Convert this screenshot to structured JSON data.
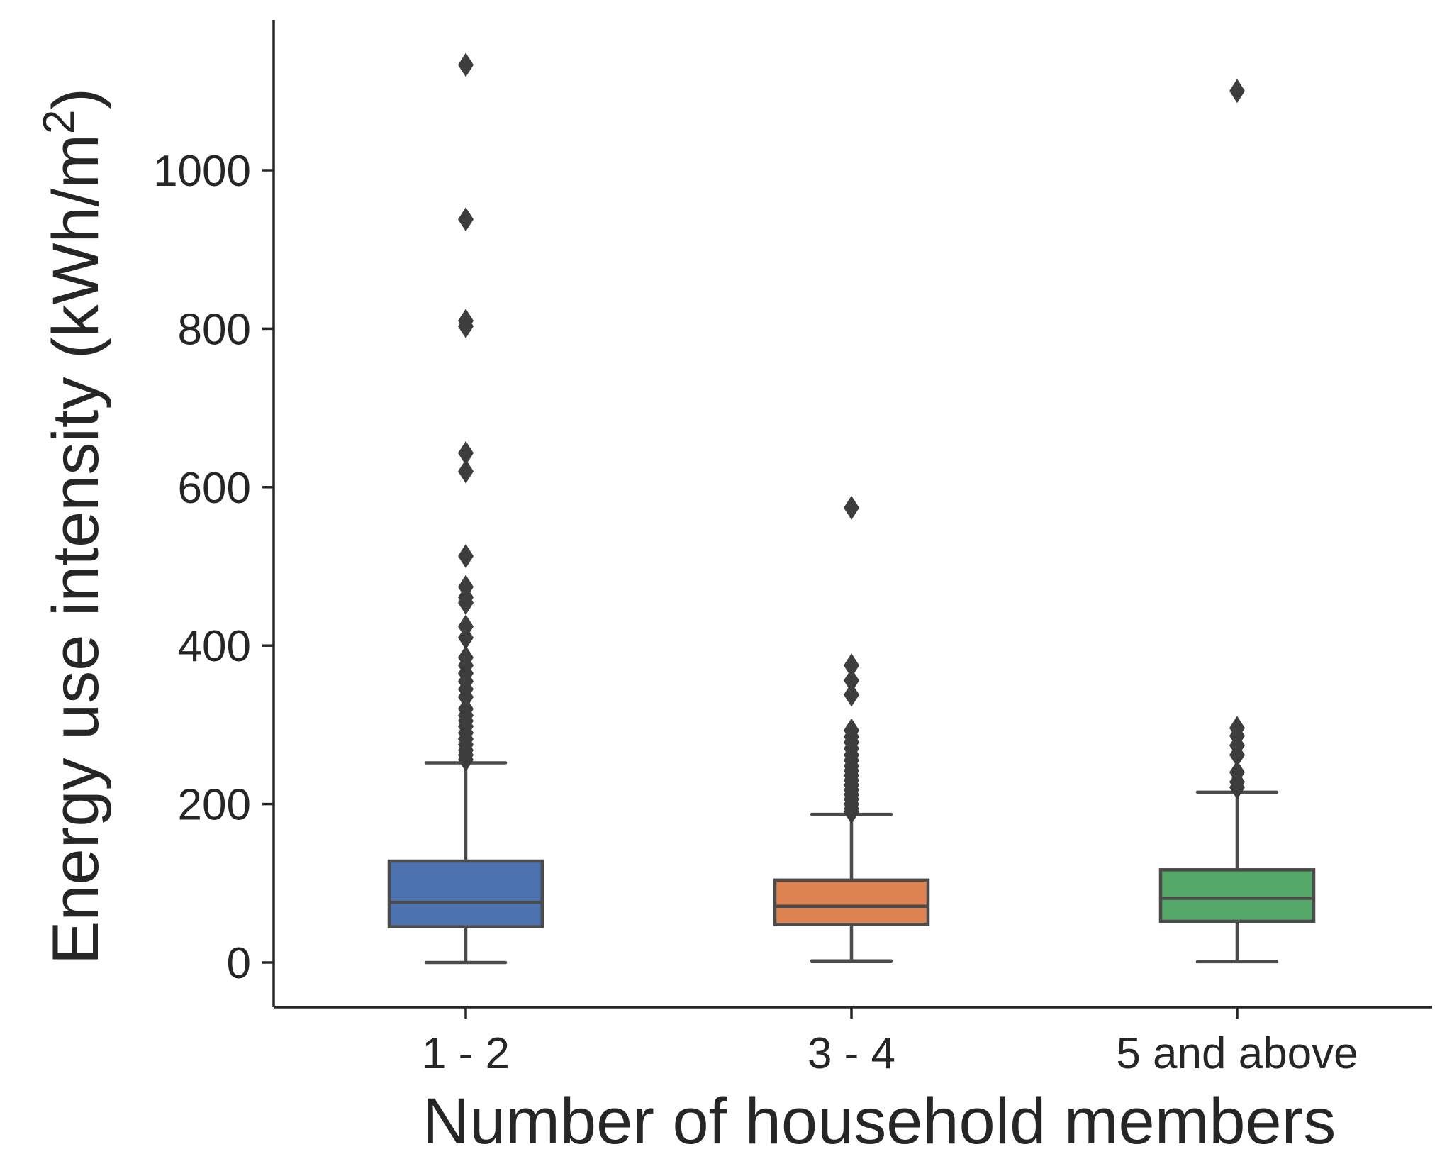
{
  "chart_data": {
    "type": "box",
    "xlabel": "Number of household members",
    "ylabel": "Energy use intensity (kWh/m",
    "ylabel_superscript": "2",
    "ylabel_close": ")",
    "ylim": [
      -55,
      1185
    ],
    "yticks": [
      0,
      200,
      400,
      600,
      800,
      1000
    ],
    "ytick_labels": [
      "0",
      "200",
      "400",
      "600",
      "800",
      "1000"
    ],
    "grid": false,
    "categories": [
      "1 - 2",
      "3 - 4",
      "5 and above"
    ],
    "boxes": [
      {
        "category": "1 - 2",
        "color": "#4c72b0",
        "whisker_low": 0,
        "q1": 45,
        "median": 76,
        "q3": 128,
        "whisker_high": 252,
        "outliers": [
          1133,
          938,
          810,
          803,
          643,
          620,
          513,
          474,
          461,
          454,
          424,
          410,
          385,
          375,
          365,
          355,
          345,
          335,
          320,
          312,
          305,
          298,
          290,
          282,
          275,
          268,
          262,
          256
        ]
      },
      {
        "category": "3 - 4",
        "color": "#dd8452",
        "whisker_low": 2,
        "q1": 48,
        "median": 71,
        "q3": 104,
        "whisker_high": 187,
        "outliers": [
          574,
          375,
          356,
          338,
          293,
          285,
          278,
          270,
          262,
          255,
          248,
          242,
          236,
          230,
          224,
          218,
          212,
          206,
          200,
          194,
          190
        ]
      },
      {
        "category": "5 and above",
        "color": "#55a868",
        "whisker_low": 1,
        "q1": 52,
        "median": 81,
        "q3": 117,
        "whisker_high": 215,
        "outliers": [
          1100,
          296,
          286,
          274,
          262,
          240,
          228,
          221
        ]
      }
    ]
  }
}
